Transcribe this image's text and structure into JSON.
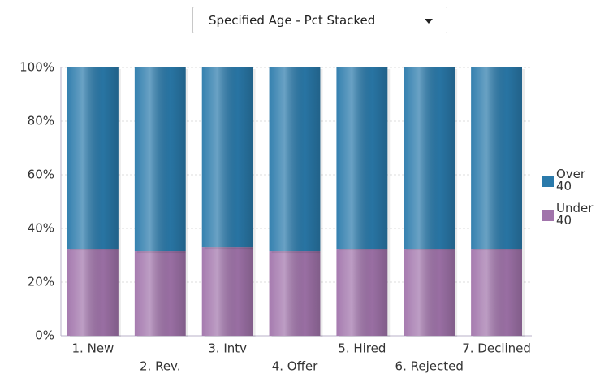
{
  "dropdown": {
    "label": "Specified Age - Pct Stacked"
  },
  "chart_data": {
    "type": "bar",
    "stacked": true,
    "categories": [
      "1. New",
      "2. Rev.",
      "3. Intv",
      "4. Offer",
      "5. Hired",
      "6. Rejected",
      "7. Declined"
    ],
    "series": [
      {
        "name": "Over 40",
        "color": "#2a7aab",
        "values": [
          67.6,
          68.5,
          67,
          68.5,
          67.6,
          67.6,
          67.6
        ]
      },
      {
        "name": "Under 40",
        "color": "#a174ab",
        "values": [
          32.4,
          31.5,
          33,
          31.5,
          32.4,
          32.4,
          32.4
        ]
      }
    ],
    "ylim": [
      0,
      100
    ],
    "yticks": [
      {
        "value": 0,
        "label": "0%"
      },
      {
        "value": 20,
        "label": "20%"
      },
      {
        "value": 40,
        "label": "40%"
      },
      {
        "value": 60,
        "label": "60%"
      },
      {
        "value": 80,
        "label": "80%"
      },
      {
        "value": 100,
        "label": "100%"
      }
    ],
    "grid": true,
    "legend": "right"
  }
}
